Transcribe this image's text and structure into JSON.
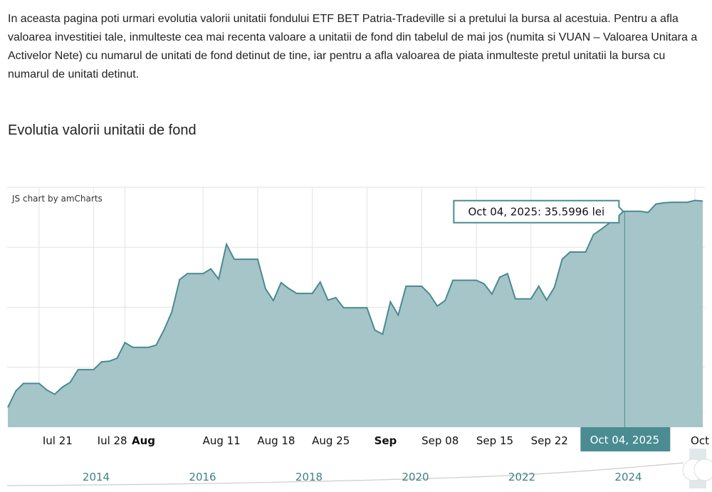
{
  "intro_text": "In aceasta pagina poti urmari evolutia valorii unitatii fondului ETF BET Patria-Tradeville si a pretului la bursa al acestuia. Pentru a afla valoarea investitiei tale, inmulteste cea mai recenta valoare a unitatii de fond din tabelul de mai jos (numita si VUAN – Valoarea Unitara a Activelor Nete) cu numarul de unitati de fond detinut de tine, iar pentru a afla valoarea de piata inmulteste pretul unitatii la bursa cu numarul de unitati detinut.",
  "section_title": "Evolutia valorii unitatii de fond",
  "chart_credit": "JS chart by amCharts",
  "colors": {
    "line": "#4a8a8f",
    "fill": "#a6c5c9",
    "accent": "#4a8c91",
    "grid": "#e2e2e2"
  },
  "chart_data": {
    "type": "area",
    "title": "",
    "xlabel": "",
    "ylabel": "",
    "unit": "lei",
    "ylim": [
      32.0,
      36.0
    ],
    "xlim": [
      "2025-07-17",
      "2025-10-14"
    ],
    "grid": true,
    "x_tick_labels": [
      {
        "date": "2025-07-21",
        "label": "Iul 21",
        "bold": false
      },
      {
        "date": "2025-07-28",
        "label": "Iul 28",
        "bold": false
      },
      {
        "date": "2025-08-01",
        "label": "Aug",
        "bold": true
      },
      {
        "date": "2025-08-11",
        "label": "Aug 11",
        "bold": false
      },
      {
        "date": "2025-08-18",
        "label": "Aug 18",
        "bold": false
      },
      {
        "date": "2025-08-25",
        "label": "Aug 25",
        "bold": false
      },
      {
        "date": "2025-09-01",
        "label": "Sep",
        "bold": true
      },
      {
        "date": "2025-09-08",
        "label": "Sep 08",
        "bold": false
      },
      {
        "date": "2025-09-15",
        "label": "Sep 15",
        "bold": false
      },
      {
        "date": "2025-09-22",
        "label": "Sep 22",
        "bold": false
      },
      {
        "date": "2025-10-13",
        "label": "Oct",
        "bold": false
      }
    ],
    "x": [
      "2025-07-17",
      "2025-07-18",
      "2025-07-19",
      "2025-07-21",
      "2025-07-22",
      "2025-07-23",
      "2025-07-24",
      "2025-07-25",
      "2025-07-26",
      "2025-07-28",
      "2025-07-29",
      "2025-07-30",
      "2025-07-31",
      "2025-08-01",
      "2025-08-02",
      "2025-08-04",
      "2025-08-05",
      "2025-08-06",
      "2025-08-07",
      "2025-08-08",
      "2025-08-09",
      "2025-08-11",
      "2025-08-12",
      "2025-08-13",
      "2025-08-14",
      "2025-08-15",
      "2025-08-18",
      "2025-08-19",
      "2025-08-20",
      "2025-08-21",
      "2025-08-22",
      "2025-08-23",
      "2025-08-25",
      "2025-08-26",
      "2025-08-27",
      "2025-08-28",
      "2025-08-29",
      "2025-09-01",
      "2025-09-02",
      "2025-09-03",
      "2025-09-04",
      "2025-09-05",
      "2025-09-06",
      "2025-09-08",
      "2025-09-09",
      "2025-09-10",
      "2025-09-11",
      "2025-09-12",
      "2025-09-15",
      "2025-09-16",
      "2025-09-17",
      "2025-09-18",
      "2025-09-19",
      "2025-09-20",
      "2025-09-22",
      "2025-09-23",
      "2025-09-24",
      "2025-09-25",
      "2025-09-26",
      "2025-09-27",
      "2025-09-29",
      "2025-09-30",
      "2025-10-01",
      "2025-10-02",
      "2025-10-03",
      "2025-10-04",
      "2025-10-05",
      "2025-10-06",
      "2025-10-07",
      "2025-10-08",
      "2025-10-09",
      "2025-10-10",
      "2025-10-12",
      "2025-10-13",
      "2025-10-14"
    ],
    "values": [
      32.33,
      32.6,
      32.73,
      32.73,
      32.62,
      32.55,
      32.67,
      32.75,
      32.96,
      32.96,
      33.09,
      33.1,
      33.15,
      33.41,
      33.33,
      33.33,
      33.37,
      33.62,
      33.92,
      34.46,
      34.56,
      34.56,
      34.64,
      34.47,
      35.05,
      34.8,
      34.8,
      34.31,
      34.11,
      34.41,
      34.31,
      34.23,
      34.23,
      34.42,
      34.12,
      34.16,
      33.99,
      33.99,
      33.62,
      33.55,
      34.09,
      33.87,
      34.35,
      34.35,
      34.22,
      34.02,
      34.11,
      34.45,
      34.45,
      34.39,
      34.22,
      34.5,
      34.56,
      34.14,
      34.14,
      34.35,
      34.12,
      34.33,
      34.8,
      34.92,
      34.92,
      35.21,
      35.3,
      35.4,
      35.55,
      35.5996,
      35.6,
      35.6,
      35.58,
      35.72,
      35.74,
      35.75,
      35.75,
      35.78,
      35.77
    ],
    "tooltip": {
      "date": "2025-10-04",
      "text": "Oct 04, 2025: 35.5996 lei"
    },
    "cursor_label": "Oct 04, 2025",
    "navigator_years": [
      "2014",
      "2016",
      "2018",
      "2020",
      "2022",
      "2024"
    ]
  }
}
